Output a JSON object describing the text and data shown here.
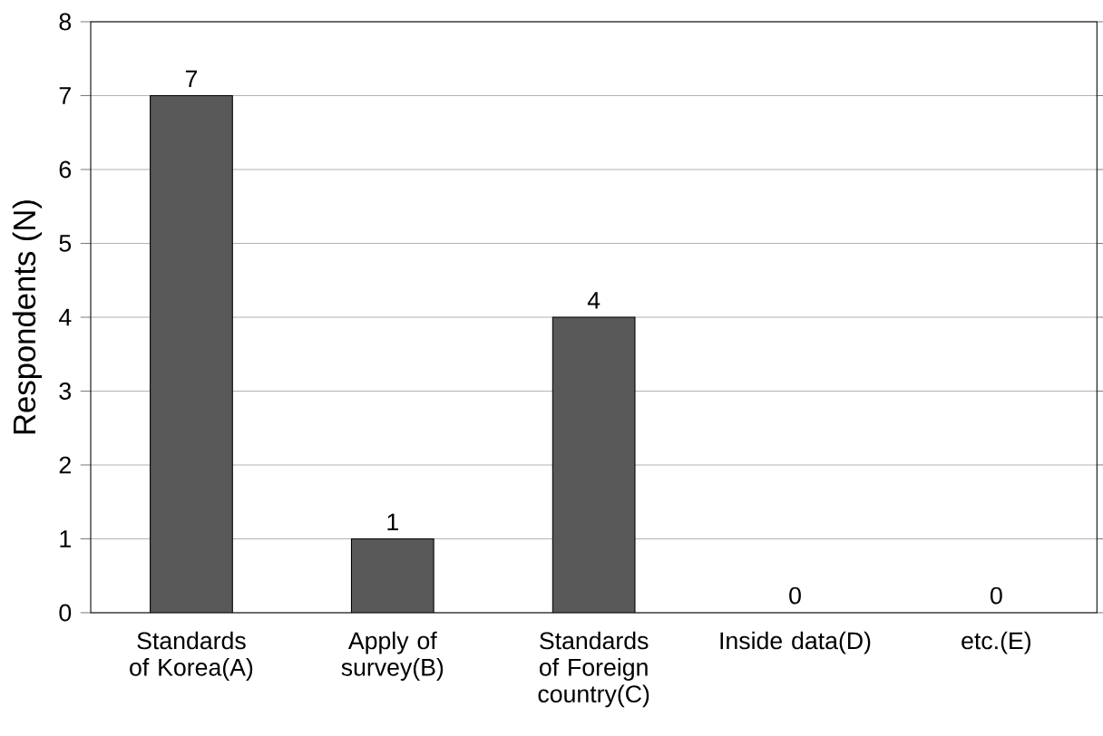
{
  "chart_data": {
    "type": "bar",
    "ylabel": "Respondents (N)",
    "categories": [
      "Standards of Korea(A)",
      "Apply of survey(B)",
      "Standards of Foreign country(C)",
      "Inside data(D)",
      "etc.(E)"
    ],
    "values": [
      7,
      1,
      4,
      0,
      0
    ],
    "color": "#595959",
    "ylim": [
      0,
      8
    ],
    "yticks": [
      0,
      1,
      2,
      3,
      4,
      5,
      6,
      7,
      8
    ],
    "grid": "y",
    "data_labels": true
  }
}
